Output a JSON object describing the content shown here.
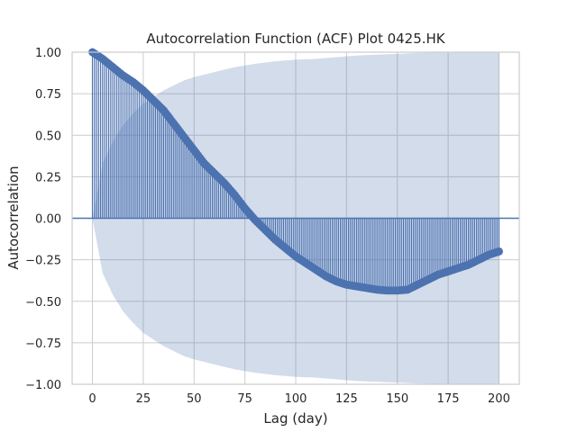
{
  "chart_data": {
    "type": "stem",
    "title": "Autocorrelation Function (ACF) Plot 0425.HK",
    "xlabel": "Lag (day)",
    "ylabel": "Autocorrelation",
    "xlim": [
      -10,
      210
    ],
    "ylim": [
      -1.0,
      1.0
    ],
    "xticks": [
      0,
      25,
      50,
      75,
      100,
      125,
      150,
      175,
      200
    ],
    "yticks": [
      -1.0,
      -0.75,
      -0.5,
      -0.25,
      0.0,
      0.25,
      0.5,
      0.75,
      1.0
    ],
    "ytick_labels": [
      "−1.00",
      "−0.75",
      "−0.50",
      "−0.25",
      "0.00",
      "0.25",
      "0.50",
      "0.75",
      "1.00"
    ],
    "grid": true,
    "lags": {
      "start": 0,
      "end": 200,
      "step": 1
    },
    "acf_keypoints": [
      [
        0,
        1.0
      ],
      [
        5,
        0.96
      ],
      [
        10,
        0.91
      ],
      [
        15,
        0.86
      ],
      [
        20,
        0.82
      ],
      [
        25,
        0.77
      ],
      [
        30,
        0.71
      ],
      [
        35,
        0.65
      ],
      [
        40,
        0.57
      ],
      [
        45,
        0.49
      ],
      [
        50,
        0.41
      ],
      [
        55,
        0.33
      ],
      [
        60,
        0.27
      ],
      [
        65,
        0.21
      ],
      [
        70,
        0.14
      ],
      [
        75,
        0.06
      ],
      [
        80,
        -0.01
      ],
      [
        85,
        -0.07
      ],
      [
        90,
        -0.13
      ],
      [
        95,
        -0.18
      ],
      [
        100,
        -0.23
      ],
      [
        105,
        -0.27
      ],
      [
        110,
        -0.31
      ],
      [
        115,
        -0.35
      ],
      [
        120,
        -0.38
      ],
      [
        125,
        -0.4
      ],
      [
        130,
        -0.41
      ],
      [
        135,
        -0.42
      ],
      [
        140,
        -0.43
      ],
      [
        145,
        -0.435
      ],
      [
        150,
        -0.435
      ],
      [
        155,
        -0.43
      ],
      [
        160,
        -0.4
      ],
      [
        165,
        -0.37
      ],
      [
        170,
        -0.34
      ],
      [
        175,
        -0.32
      ],
      [
        180,
        -0.3
      ],
      [
        185,
        -0.28
      ],
      [
        190,
        -0.25
      ],
      [
        195,
        -0.22
      ],
      [
        200,
        -0.2
      ]
    ],
    "confidence_band_keypoints": [
      [
        0,
        0.0
      ],
      [
        5,
        0.33
      ],
      [
        10,
        0.46
      ],
      [
        15,
        0.56
      ],
      [
        20,
        0.63
      ],
      [
        25,
        0.69
      ],
      [
        30,
        0.73
      ],
      [
        35,
        0.77
      ],
      [
        40,
        0.8
      ],
      [
        45,
        0.83
      ],
      [
        50,
        0.85
      ],
      [
        60,
        0.88
      ],
      [
        70,
        0.91
      ],
      [
        80,
        0.93
      ],
      [
        90,
        0.945
      ],
      [
        100,
        0.955
      ],
      [
        110,
        0.96
      ],
      [
        120,
        0.97
      ],
      [
        130,
        0.98
      ],
      [
        140,
        0.985
      ],
      [
        150,
        0.99
      ],
      [
        160,
        0.995
      ],
      [
        170,
        0.999
      ],
      [
        180,
        1.0
      ],
      [
        190,
        1.0
      ],
      [
        200,
        1.0
      ]
    ],
    "colors": {
      "stem": "#4c72b0",
      "band": "#4c72b0",
      "zero_line": "#4c72b0",
      "grid": "#cccccc",
      "spine": "#cccccc"
    }
  }
}
